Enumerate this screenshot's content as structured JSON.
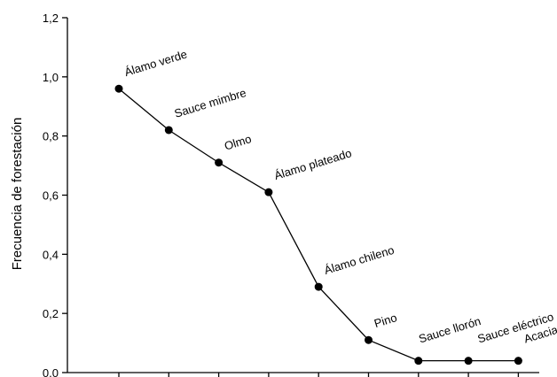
{
  "chart_data": {
    "type": "line",
    "title": "",
    "xlabel": "",
    "ylabel": "Frecuencia de forestación",
    "ylim": [
      0,
      1.2
    ],
    "yticks": [
      "0,0",
      "0,2",
      "0,4",
      "0,6",
      "0,8",
      "1,0",
      "1,2"
    ],
    "grid": false,
    "legend": "none",
    "categories": [
      "Álamo verde",
      "Sauce mimbre",
      "Olmo",
      "Álamo plateado",
      "Álamo chileno",
      "Pino",
      "Sauce llorón",
      "Sauce eléctrico",
      "Acacia"
    ],
    "series": [
      {
        "values": [
          0.96,
          0.82,
          0.71,
          0.61,
          0.29,
          0.11,
          0.04,
          0.04,
          0.04
        ]
      }
    ],
    "line_color": "#000000",
    "marker_color": "#000000"
  }
}
